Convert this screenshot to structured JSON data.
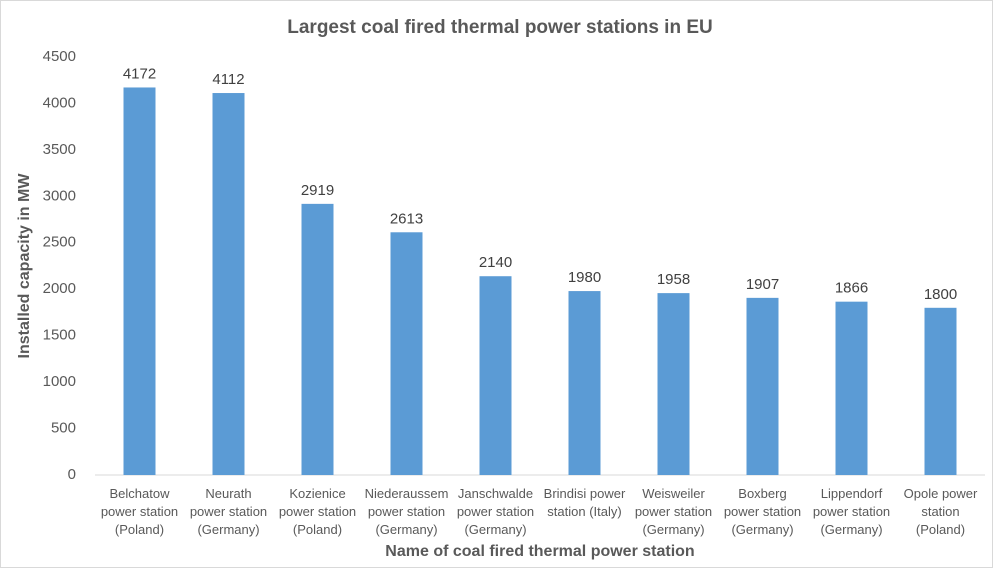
{
  "chart_data": {
    "type": "bar",
    "title": "Largest coal fired thermal power stations in EU",
    "x_label": "Name of coal fired thermal power station",
    "y_label": "Installed capacity in MW",
    "categories": [
      "Belchatow\npower station\n(Poland)",
      "Neurath\npower station\n(Germany)",
      "Kozienice\npower station\n(Poland)",
      "Niederaussem\npower station\n(Germany)",
      "Janschwalde\npower station\n(Germany)",
      "Brindisi power\nstation (Italy)",
      "Weisweiler\npower station\n(Germany)",
      "Boxberg\npower station\n(Germany)",
      "Lippendorf\npower station\n(Germany)",
      "Opole power\nstation\n(Poland)"
    ],
    "values": [
      4172,
      4112,
      2919,
      2613,
      2140,
      1980,
      1958,
      1907,
      1866,
      1800
    ],
    "color": "#5b9bd5",
    "ylim": [
      0,
      4500
    ],
    "yticks": [
      0,
      500,
      1000,
      1500,
      2000,
      2500,
      3000,
      3500,
      4000,
      4500
    ],
    "grid": false
  }
}
